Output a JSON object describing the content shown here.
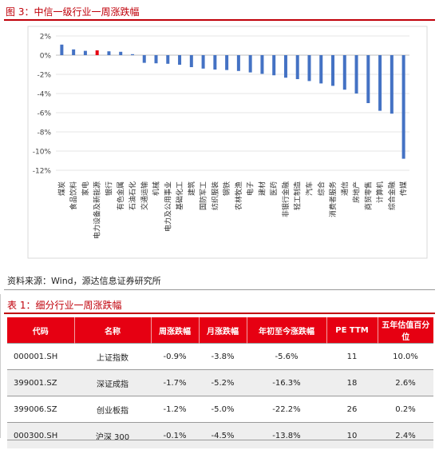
{
  "figure_title": "图 3：中信一级行业一周涨跌幅",
  "source_note": "资料来源：Wind，源达信息证券研究所",
  "table_title": "表 1：细分行业一周涨跌幅",
  "colors": {
    "bar": "#4472c4",
    "highlight": "#e60012",
    "accent": "#c0000a"
  },
  "chart_data": {
    "type": "bar",
    "title": "",
    "xlabel": "",
    "ylabel": "",
    "ylim": [
      -12,
      2
    ],
    "yticks": [
      2,
      0,
      -2,
      -4,
      -6,
      -8,
      -10,
      -12
    ],
    "ytick_labels": [
      "2%",
      "0%",
      "-2%",
      "-4%",
      "-6%",
      "-8%",
      "-10%",
      "-12%"
    ],
    "grid": true,
    "categories": [
      "煤炭",
      "食品饮料",
      "家电",
      "电力设备及新能源",
      "银行",
      "有色金属",
      "石油石化",
      "交通运输",
      "机械",
      "电力及公用事业",
      "基础化工",
      "建筑",
      "国防军工",
      "纺织服装",
      "钢铁",
      "农林牧渔",
      "电子",
      "建材",
      "医药",
      "非银行金融",
      "轻工制造",
      "汽车",
      "综合",
      "消费者服务",
      "通信",
      "房地产",
      "商贸零售",
      "计算机",
      "综合金融",
      "传媒"
    ],
    "values": [
      1.1,
      0.6,
      0.45,
      0.5,
      0.4,
      0.35,
      0.1,
      -0.8,
      -0.85,
      -0.9,
      -1.0,
      -1.25,
      -1.4,
      -1.5,
      -1.55,
      -1.65,
      -1.8,
      -1.95,
      -2.1,
      -2.35,
      -2.5,
      -2.7,
      -2.95,
      -3.2,
      -3.6,
      -4.0,
      -5.0,
      -5.8,
      -6.1,
      -10.8
    ],
    "highlight_index": 3
  },
  "table": {
    "headers": [
      "代码",
      "名称",
      "周涨跌幅",
      "月涨跌幅",
      "年初至今涨跌幅",
      "PE TTM",
      "五年估值百分位"
    ],
    "rows": [
      [
        "000001.SH",
        "上证指数",
        "-0.9%",
        "-3.8%",
        "-5.6%",
        "11",
        "10.0%"
      ],
      [
        "399001.SZ",
        "深证成指",
        "-1.7%",
        "-5.2%",
        "-16.3%",
        "18",
        "2.6%"
      ],
      [
        "399006.SZ",
        "创业板指",
        "-1.2%",
        "-5.0%",
        "-22.2%",
        "26",
        "0.2%"
      ],
      [
        "000300.SH",
        "沪深 300",
        "-0.1%",
        "-4.5%",
        "-13.8%",
        "10",
        "2.4%"
      ]
    ]
  }
}
